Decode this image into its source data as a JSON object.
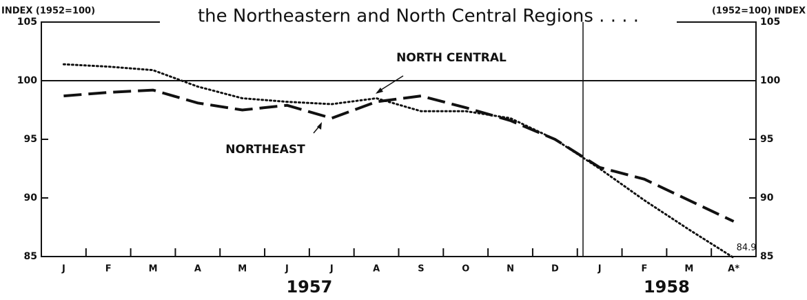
{
  "chart_data": {
    "type": "line",
    "title": "the Northeastern and North Central Regions . . . .",
    "ylabel": "INDEX (1952=100)",
    "y2label": "(1952=100) INDEX",
    "categories": [
      "J",
      "F",
      "M",
      "A",
      "M",
      "J",
      "J",
      "A",
      "S",
      "O",
      "N",
      "D",
      "J",
      "F",
      "M",
      "A*"
    ],
    "x_groups": [
      {
        "label": "1957",
        "categories": 12
      },
      {
        "label": "1958",
        "categories": 4
      }
    ],
    "series": [
      {
        "name": "NORTHEAST",
        "color": "#111",
        "dash": "dashed",
        "values": [
          98.7,
          99.0,
          99.2,
          98.1,
          97.5,
          97.9,
          96.8,
          98.2,
          98.7,
          97.7,
          96.6,
          95.0,
          92.6,
          91.6,
          89.8,
          88.0
        ]
      },
      {
        "name": "NORTH CENTRAL",
        "color": "#111",
        "dash": "dotted",
        "values": [
          101.4,
          101.2,
          100.9,
          99.5,
          98.5,
          98.2,
          98.0,
          98.5,
          97.4,
          97.4,
          96.8,
          95.0,
          92.5,
          89.8,
          87.3,
          84.9
        ],
        "value_labels": [
          null,
          null,
          null,
          null,
          null,
          null,
          null,
          null,
          null,
          null,
          null,
          null,
          null,
          null,
          null,
          "84.9"
        ]
      }
    ],
    "ylim": [
      85,
      105
    ],
    "yticks": [
      85,
      90,
      95,
      100,
      105
    ],
    "y2lim": [
      85,
      105
    ],
    "y2ticks": [
      85,
      90,
      95,
      100,
      105
    ],
    "reference_line": 100
  }
}
